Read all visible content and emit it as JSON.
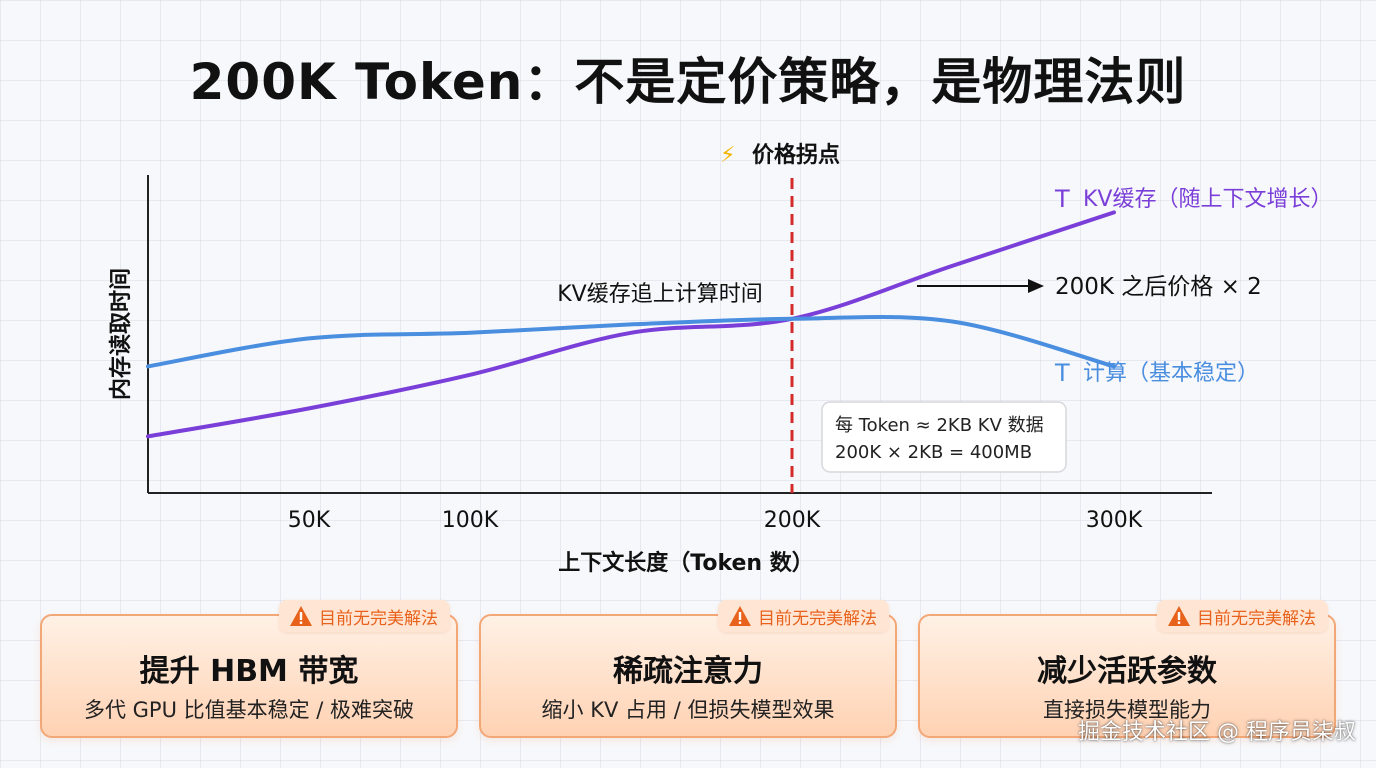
{
  "title": "200K Token：不是定价策略，是物理法则",
  "chart_data": {
    "type": "line",
    "ylabel": "内存读取时间",
    "xlabel": "上下文长度（Token 数）",
    "x_ticks": [
      "50K",
      "100K",
      "200K",
      "300K"
    ],
    "x_tick_values": [
      50,
      100,
      200,
      300
    ],
    "xlim": [
      0,
      350
    ],
    "ylim": [
      0,
      100
    ],
    "grid": false,
    "series": [
      {
        "name": "KV缓存（随上下文增长）",
        "icon": "T",
        "color": "#7b3fd9",
        "x": [
          0,
          50,
          100,
          150,
          200,
          250,
          300
        ],
        "y": [
          12,
          22,
          34,
          49,
          54,
          73,
          92
        ]
      },
      {
        "name": "计算（基本稳定）",
        "icon": "T",
        "color": "#4a8ee0",
        "x": [
          0,
          50,
          100,
          150,
          200,
          250,
          300
        ],
        "y": [
          37,
          47,
          49,
          52,
          54,
          53,
          37
        ]
      }
    ],
    "marker": {
      "x": 200,
      "label": "价格拐点",
      "icon": "⚡",
      "color": "#d42a2a"
    },
    "annotations": {
      "intersection": "KV缓存追上计算时间",
      "arrow_note": "200K 之后价格 × 2",
      "info_line1": "每 Token ≈ 2KB KV 数据",
      "info_line2": "200K × 2KB = 400MB"
    }
  },
  "cards": [
    {
      "title": "提升 HBM 带宽",
      "sub": "多代 GPU 比值基本稳定 / 极难突破",
      "badge": "目前无完美解法"
    },
    {
      "title": "稀疏注意力",
      "sub": "缩小 KV 占用 / 但损失模型效果",
      "badge": "目前无完美解法"
    },
    {
      "title": "减少活跃参数",
      "sub": "直接损失模型能力",
      "badge": "目前无完美解法"
    }
  ],
  "colors": {
    "accent": "#e8621c",
    "kv": "#7b3fd9",
    "compute": "#4a8ee0",
    "marker": "#d42a2a"
  },
  "watermark": "掘金技术社区 @ 程序员柒叔"
}
